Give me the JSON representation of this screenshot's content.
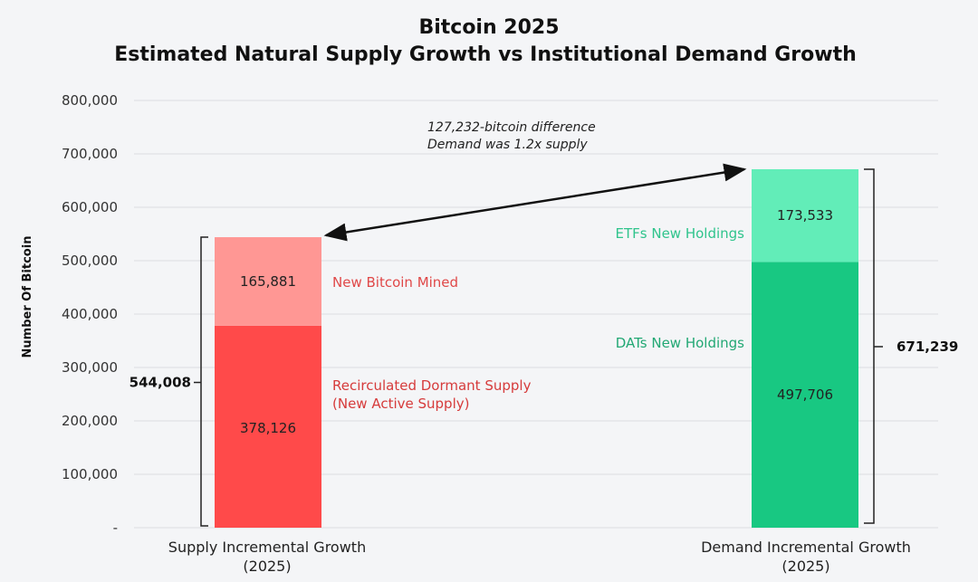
{
  "chart_data": {
    "type": "bar",
    "stacked": true,
    "title": "Bitcoin 2025",
    "subtitle": "Estimated Natural Supply Growth vs Institutional Demand Growth",
    "ylabel": "Number Of Bitcoin",
    "ylim": [
      0,
      800000
    ],
    "yticks": [
      "-",
      "100,000",
      "200,000",
      "300,000",
      "400,000",
      "500,000",
      "600,000",
      "700,000",
      "800,000"
    ],
    "ytick_values": [
      0,
      100000,
      200000,
      300000,
      400000,
      500000,
      600000,
      700000,
      800000
    ],
    "grid": true,
    "categories": [
      [
        "Supply Incremental Growth",
        "(2025)"
      ],
      [
        "Demand Incremental Growth",
        "(2025)"
      ]
    ],
    "bars": [
      {
        "total": 544008,
        "total_label": "544,008",
        "segments": [
          {
            "name": "Recirculated Dormant Supply",
            "name_line2": "(New Active Supply)",
            "value": 378126,
            "label": "378,126",
            "color": "#ff4a4a",
            "label_color": "#d63b3b"
          },
          {
            "name": "New Bitcoin Mined",
            "value": 165881,
            "label": "165,881",
            "color": "#ff9794",
            "label_color": "#e04848"
          }
        ]
      },
      {
        "total": 671239,
        "total_label": "671,239",
        "segments": [
          {
            "name": "DATs New Holdings",
            "value": 497706,
            "label": "497,706",
            "color": "#18c882",
            "label_color": "#22a874"
          },
          {
            "name": "ETFs New Holdings",
            "value": 173533,
            "label": "173,533",
            "color": "#62edb8",
            "label_color": "#2fc48c"
          }
        ]
      }
    ],
    "annotation": [
      "127,232-bitcoin difference",
      "Demand was 1.2x supply"
    ],
    "colors": {
      "background": "#f4f5f7",
      "grid": "#dcdde0",
      "text": "#111111"
    }
  }
}
